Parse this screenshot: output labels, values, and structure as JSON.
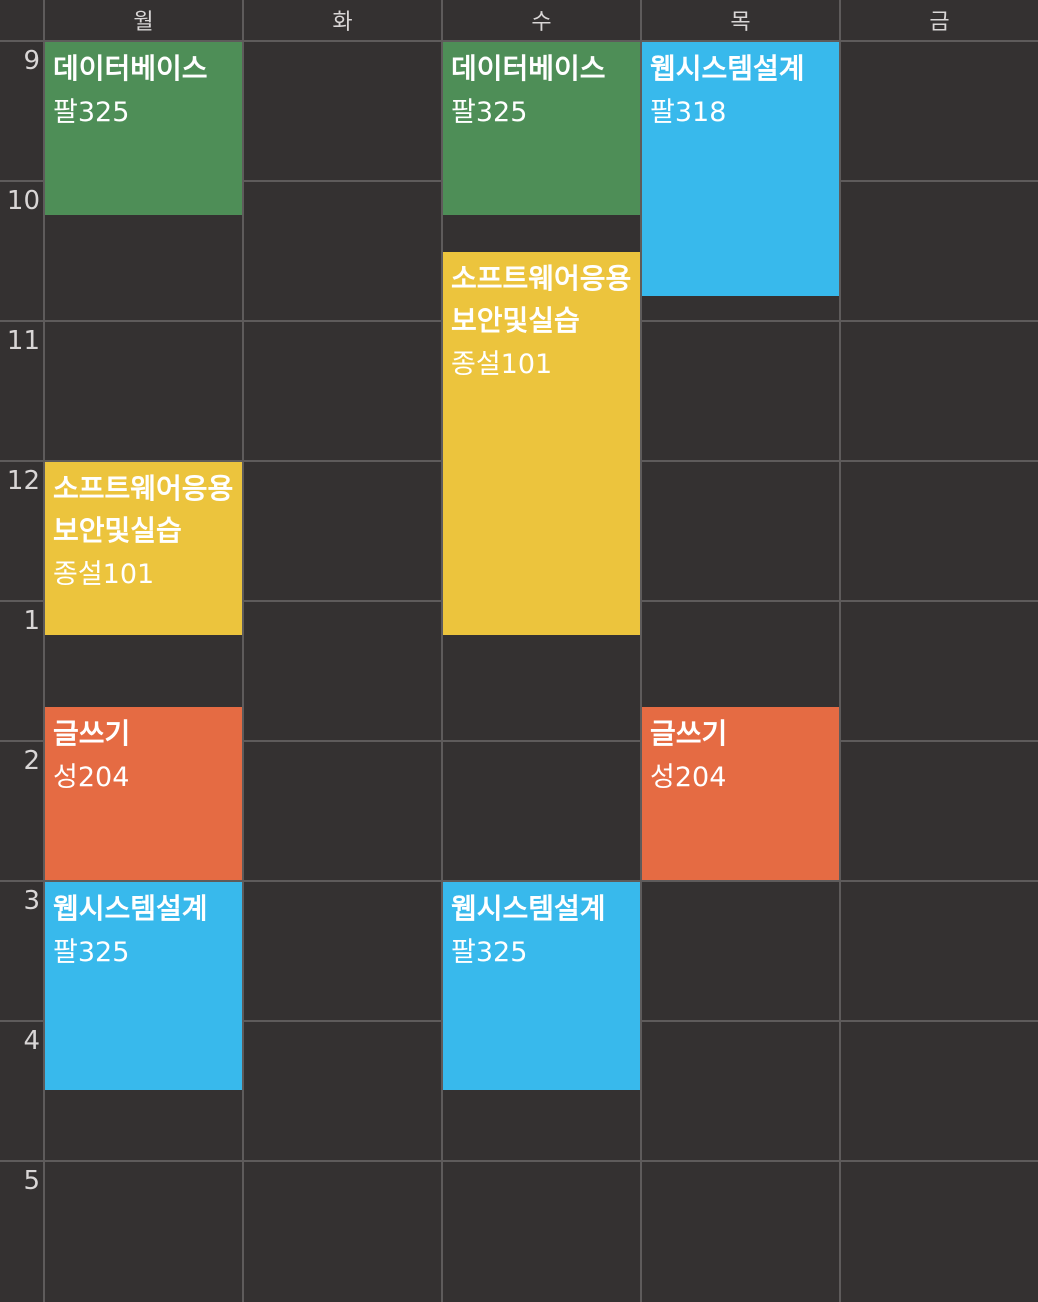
{
  "days": [
    "월",
    "화",
    "수",
    "목",
    "금"
  ],
  "hours": [
    "9",
    "10",
    "11",
    "12",
    "1",
    "2",
    "3",
    "4",
    "5"
  ],
  "colors": {
    "background": "#343131",
    "grid_line": "#5e5b5b",
    "green": "#4e8e57",
    "yellow": "#ecc43d",
    "orange": "#e56b43",
    "blue": "#38b9ec"
  },
  "events": [
    {
      "day": 0,
      "start": 9.0,
      "end": 10.25,
      "title": "데이터베이스",
      "room": "팔325",
      "color": "green"
    },
    {
      "day": 0,
      "start": 12.0,
      "end": 13.25,
      "title": "소프트웨어응용보안및실습",
      "room": "종설101",
      "color": "yellow"
    },
    {
      "day": 0,
      "start": 13.75,
      "end": 15.0,
      "title": "글쓰기",
      "room": "성204",
      "color": "orange"
    },
    {
      "day": 0,
      "start": 15.0,
      "end": 16.5,
      "title": "웹시스템설계",
      "room": "팔325",
      "color": "blue"
    },
    {
      "day": 2,
      "start": 9.0,
      "end": 10.25,
      "title": "데이터베이스",
      "room": "팔325",
      "color": "green"
    },
    {
      "day": 2,
      "start": 10.5,
      "end": 13.25,
      "title": "소프트웨어응용보안및실습",
      "room": "종설101",
      "color": "yellow"
    },
    {
      "day": 2,
      "start": 15.0,
      "end": 16.5,
      "title": "웹시스템설계",
      "room": "팔325",
      "color": "blue"
    },
    {
      "day": 3,
      "start": 9.0,
      "end": 10.83,
      "title": "웹시스템설계",
      "room": "팔318",
      "color": "blue"
    },
    {
      "day": 3,
      "start": 13.75,
      "end": 15.0,
      "title": "글쓰기",
      "room": "성204",
      "color": "orange"
    }
  ]
}
